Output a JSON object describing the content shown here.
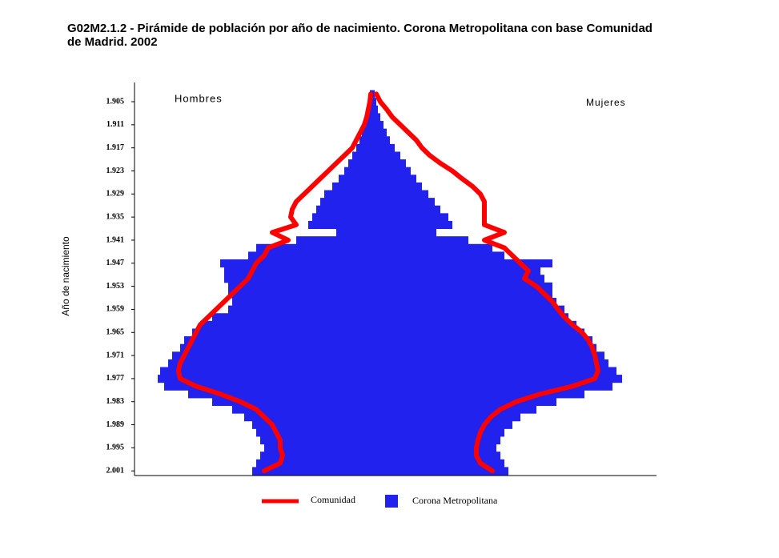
{
  "chart_data": {
    "type": "pyramid",
    "title": "G02M2.1.2 - Pirámide de población por año de nacimiento. Corona Metropolitana con base Comunidad",
    "title_line2": "de Madrid. 2002",
    "y_label": "Año de nacimiento",
    "left_label": "Hombres",
    "right_label": "Mujeres",
    "ylim": [
      1900,
      2002
    ],
    "xlim": [
      -297,
      355
    ],
    "yticks": [
      {
        "value": 1905,
        "label": "1.905"
      },
      {
        "value": 1911,
        "label": "1.911"
      },
      {
        "value": 1917,
        "label": "1.917"
      },
      {
        "value": 1923,
        "label": "1.923"
      },
      {
        "value": 1929,
        "label": "1.929"
      },
      {
        "value": 1935,
        "label": "1.935"
      },
      {
        "value": 1941,
        "label": "1.941"
      },
      {
        "value": 1947,
        "label": "1.947"
      },
      {
        "value": 1953,
        "label": "1.953"
      },
      {
        "value": 1959,
        "label": "1.959"
      },
      {
        "value": 1965,
        "label": "1.965"
      },
      {
        "value": 1971,
        "label": "1.971"
      },
      {
        "value": 1977,
        "label": "1.977"
      },
      {
        "value": 1983,
        "label": "1.983"
      },
      {
        "value": 1989,
        "label": "1.989"
      },
      {
        "value": 1995,
        "label": "1.995"
      },
      {
        "value": 2001,
        "label": "2.001"
      }
    ],
    "years": [
      1903,
      1905,
      1907,
      1909,
      1911,
      1913,
      1915,
      1917,
      1919,
      1921,
      1923,
      1925,
      1927,
      1929,
      1931,
      1933,
      1935,
      1937,
      1939,
      1941,
      1943,
      1945,
      1947,
      1949,
      1951,
      1953,
      1955,
      1957,
      1959,
      1961,
      1963,
      1965,
      1967,
      1969,
      1971,
      1973,
      1975,
      1977,
      1979,
      1981,
      1983,
      1985,
      1987,
      1989,
      1991,
      1993,
      1995,
      1997,
      1999,
      2001
    ],
    "series": [
      {
        "name": "Corona Metropolitana",
        "color": "#2222ee",
        "style": "bars",
        "men": [
          3,
          5,
          6,
          8,
          10,
          13,
          16,
          20,
          25,
          30,
          35,
          42,
          50,
          60,
          65,
          70,
          75,
          80,
          45,
          95,
          145,
          155,
          190,
          185,
          185,
          180,
          180,
          175,
          180,
          200,
          215,
          225,
          235,
          240,
          250,
          255,
          265,
          268,
          260,
          230,
          200,
          175,
          160,
          150,
          145,
          140,
          135,
          140,
          145,
          150
        ],
        "women": [
          3,
          5,
          7,
          10,
          14,
          18,
          22,
          28,
          35,
          42,
          48,
          55,
          62,
          70,
          78,
          85,
          95,
          100,
          80,
          120,
          150,
          165,
          225,
          210,
          215,
          225,
          225,
          230,
          240,
          245,
          255,
          265,
          275,
          280,
          290,
          295,
          305,
          312,
          300,
          265,
          230,
          205,
          185,
          175,
          165,
          160,
          155,
          160,
          165,
          170
        ]
      },
      {
        "name": "Comunidad",
        "color": "#ff0000",
        "style": "line",
        "men": [
          2,
          3,
          5,
          7,
          10,
          15,
          20,
          25,
          35,
          45,
          55,
          65,
          75,
          85,
          95,
          100,
          102,
          95,
          125,
          105,
          130,
          135,
          145,
          150,
          155,
          165,
          175,
          185,
          195,
          205,
          215,
          220,
          225,
          230,
          235,
          240,
          242,
          240,
          220,
          190,
          165,
          145,
          135,
          125,
          120,
          115,
          115,
          112,
          115,
          135
        ],
        "women": [
          5,
          10,
          18,
          25,
          35,
          45,
          55,
          62,
          72,
          85,
          100,
          112,
          125,
          135,
          140,
          140,
          140,
          140,
          165,
          140,
          165,
          175,
          185,
          195,
          190,
          205,
          215,
          225,
          232,
          240,
          250,
          262,
          270,
          275,
          278,
          280,
          282,
          278,
          250,
          210,
          180,
          160,
          148,
          140,
          135,
          132,
          130,
          130,
          135,
          150
        ]
      }
    ]
  }
}
